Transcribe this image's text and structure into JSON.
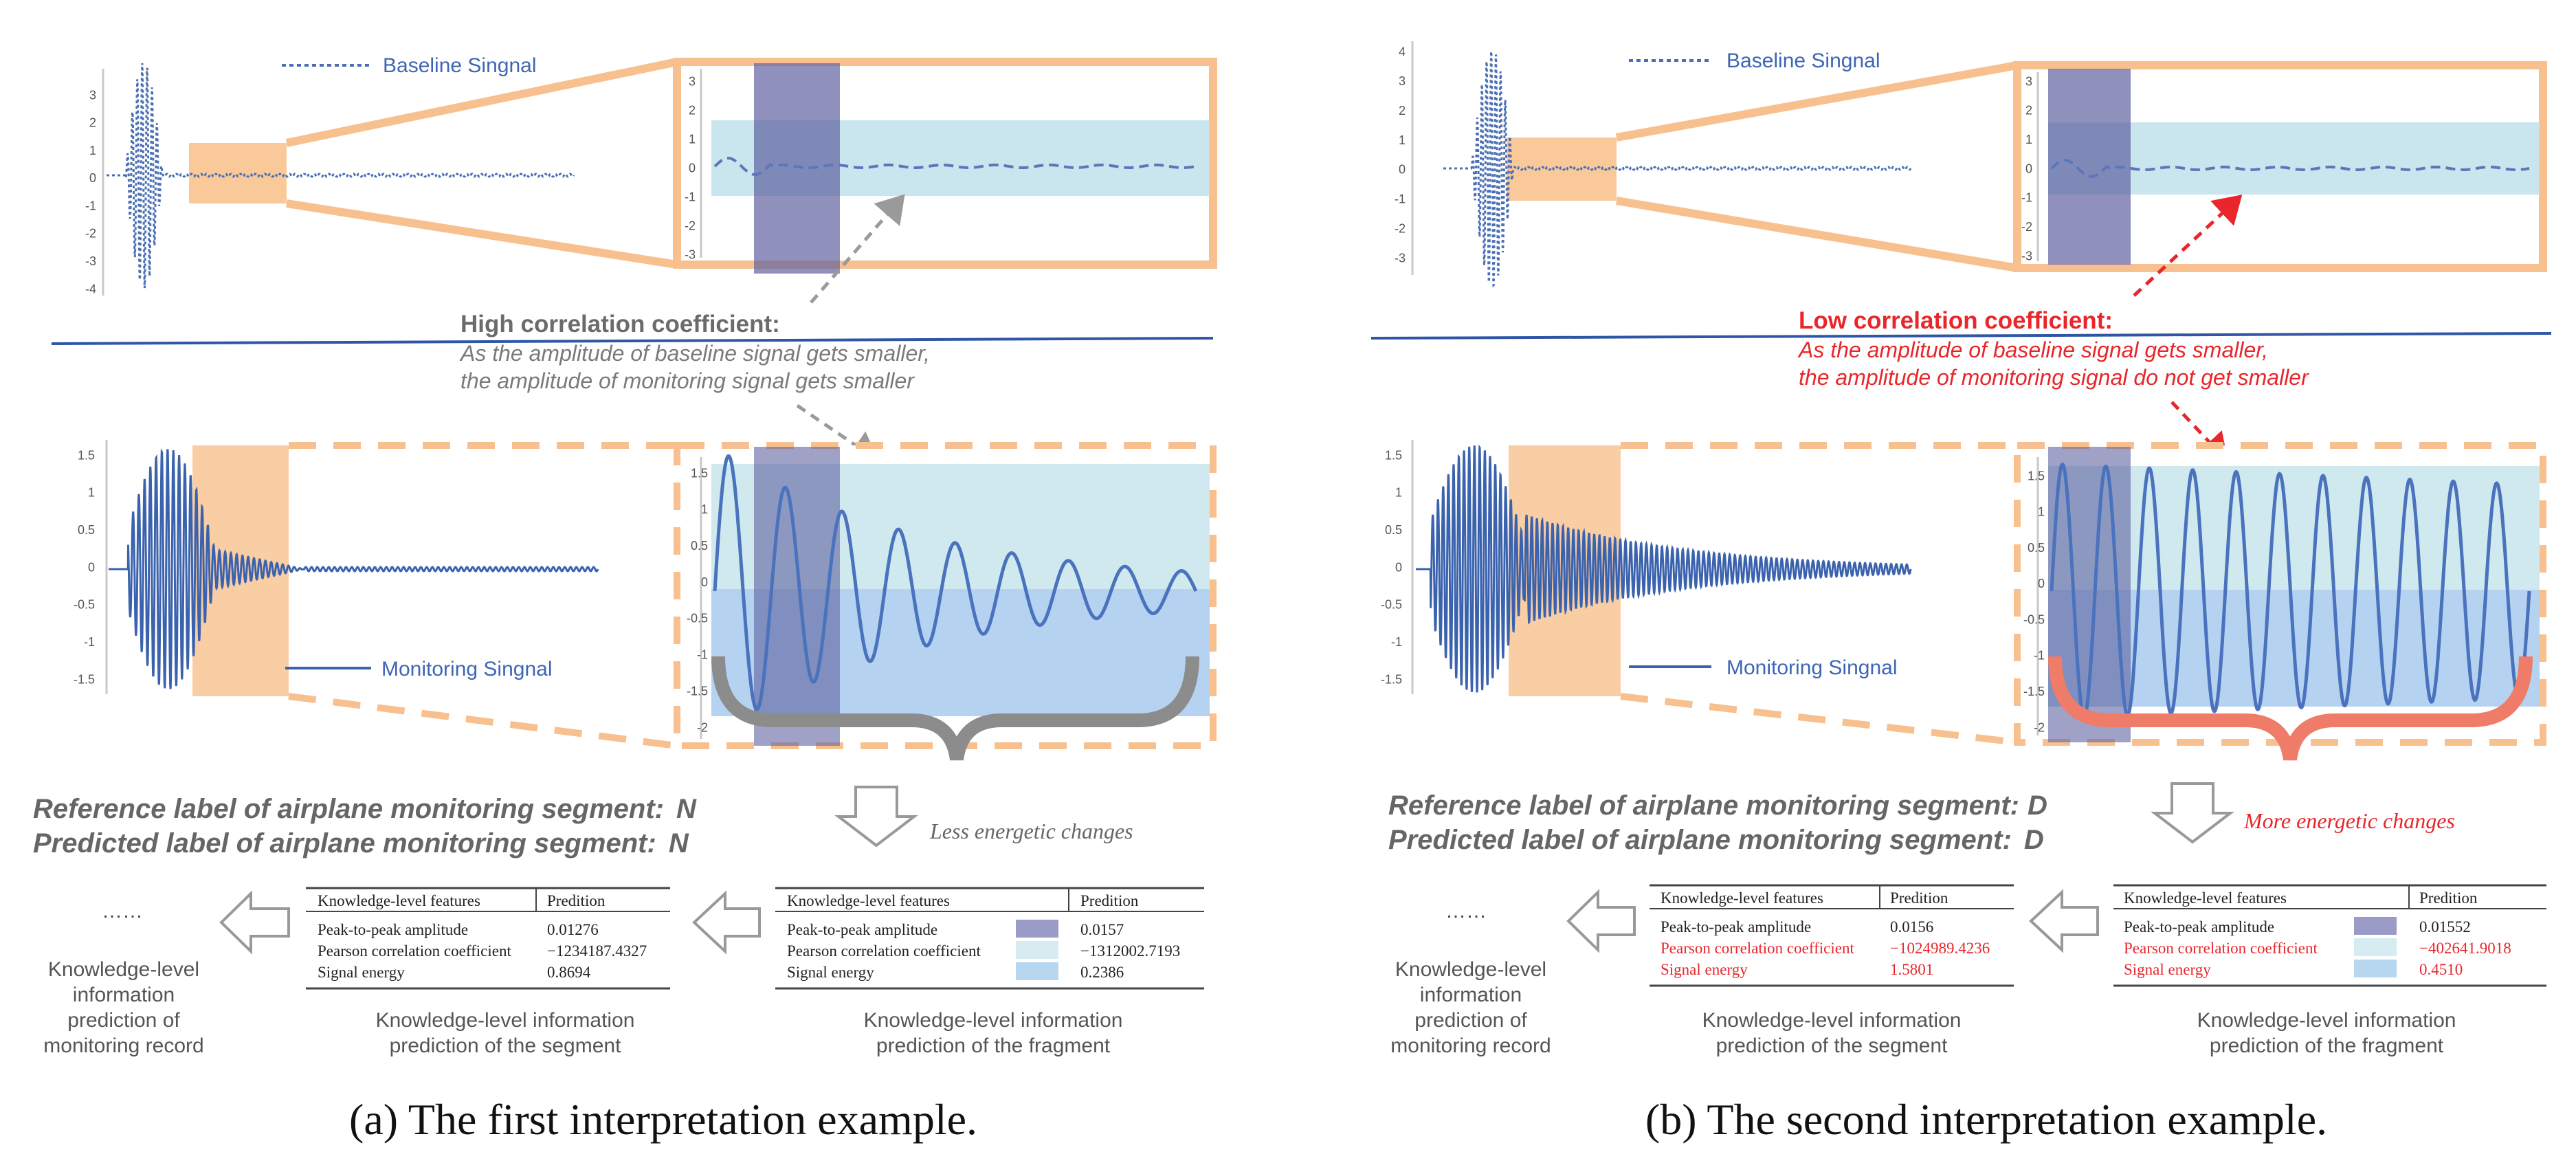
{
  "colors": {
    "baseline": "#4a6fb5",
    "monitor": "#3b63ad",
    "orange": "#f7b77a",
    "orange_fill": "#f9c99a",
    "purple": "#5f63a0",
    "light_blue": "#bfe1ea",
    "mid_blue": "#9cc3ec",
    "gray_arrow": "#9a9a9a",
    "red": "#e8262b",
    "brace_gray": "#8c8c8c",
    "brace_red": "#ee7c69",
    "divider": "#2f56a6"
  },
  "panels": [
    {
      "id": "a",
      "legend_baseline": "Baseline Singnal",
      "legend_monitoring": "Monitoring Singnal",
      "top_ticks": [
        "3",
        "2",
        "1",
        "0",
        "-1",
        "-2",
        "-3",
        "-4"
      ],
      "zoom_top_ticks": [
        "3",
        "2",
        "1",
        "0",
        "-1",
        "-2",
        "-3"
      ],
      "mid_ticks": [
        "1.5",
        "1",
        "0.5",
        "0",
        "-0.5",
        "-1",
        "-1.5"
      ],
      "zoom_mid_ticks": [
        "1.5",
        "1",
        "0.5",
        "0",
        "-0.5",
        "-1",
        "-1.5",
        "-2"
      ],
      "corr_title": "High correlation coefficient:",
      "corr_line1": "As the amplitude of baseline signal gets smaller,",
      "corr_line2": "the amplitude of monitoring signal gets smaller",
      "ref_label": "Reference label of airplane monitoring segment:",
      "ref_value": "N",
      "pred_label": "Predicted label of airplane monitoring segment:",
      "pred_value": "N",
      "change_text": "Less energetic changes",
      "dots": "……",
      "record_caption": [
        "Knowledge-level",
        "information",
        "prediction of",
        "monitoring record"
      ],
      "seg_caption": [
        "Knowledge-level information",
        "prediction of the segment"
      ],
      "frag_caption": [
        "Knowledge-level information",
        "prediction of the fragment"
      ],
      "seg_table": {
        "head": [
          "Knowledge-level features",
          "Predition"
        ],
        "rows": [
          {
            "name": "Peak-to-peak amplitude",
            "value": "0.01276"
          },
          {
            "name": "Pearson correlation coefficient",
            "value": "−1234187.4327"
          },
          {
            "name": "Signal energy",
            "value": "0.8694"
          }
        ]
      },
      "frag_table": {
        "head": [
          "Knowledge-level features",
          "Predition"
        ],
        "rows": [
          {
            "name": "Peak-to-peak amplitude",
            "value": "0.0157"
          },
          {
            "name": "Pearson correlation coefficient",
            "value": "−1312002.7193"
          },
          {
            "name": "Signal energy",
            "value": "0.2386"
          }
        ]
      },
      "caption": "(a) The first interpretation example."
    },
    {
      "id": "b",
      "legend_baseline": "Baseline Singnal",
      "legend_monitoring": "Monitoring Singnal",
      "top_ticks": [
        "4",
        "3",
        "2",
        "1",
        "0",
        "-1",
        "-2",
        "-3"
      ],
      "zoom_top_ticks": [
        "3",
        "2",
        "1",
        "0",
        "-1",
        "-2",
        "-3"
      ],
      "mid_ticks": [
        "1.5",
        "1",
        "0.5",
        "0",
        "-0.5",
        "-1",
        "-1.5"
      ],
      "zoom_mid_ticks": [
        "1.5",
        "1",
        "0.5",
        "0",
        "-0.5",
        "-1",
        "-1.5",
        "-2"
      ],
      "corr_title": "Low correlation coefficient:",
      "corr_line1": "As the amplitude of baseline signal gets smaller,",
      "corr_line2": "the amplitude of monitoring signal do not get smaller",
      "ref_label": "Reference label of airplane monitoring segment:",
      "ref_value": "D",
      "pred_label": "Predicted label of airplane monitoring segment:",
      "pred_value": "D",
      "change_text": "More energetic changes",
      "dots": "……",
      "record_caption": [
        "Knowledge-level",
        "information",
        "prediction of",
        "monitoring record"
      ],
      "seg_caption": [
        "Knowledge-level information",
        "prediction of the segment"
      ],
      "frag_caption": [
        "Knowledge-level information",
        "prediction of the fragment"
      ],
      "seg_table": {
        "head": [
          "Knowledge-level features",
          "Predition"
        ],
        "rows": [
          {
            "name": "Peak-to-peak amplitude",
            "value": "0.0156"
          },
          {
            "name": "Pearson correlation coefficient",
            "value": "−1024989.4236"
          },
          {
            "name": "Signal energy",
            "value": "1.5801"
          }
        ]
      },
      "frag_table": {
        "head": [
          "Knowledge-level features",
          "Predition"
        ],
        "rows": [
          {
            "name": "Peak-to-peak amplitude",
            "value": "0.01552"
          },
          {
            "name": "Pearson correlation coefficient",
            "value": "−402641.9018"
          },
          {
            "name": "Signal energy",
            "value": "0.4510"
          }
        ]
      },
      "caption": "(b) The second interpretation example."
    }
  ]
}
